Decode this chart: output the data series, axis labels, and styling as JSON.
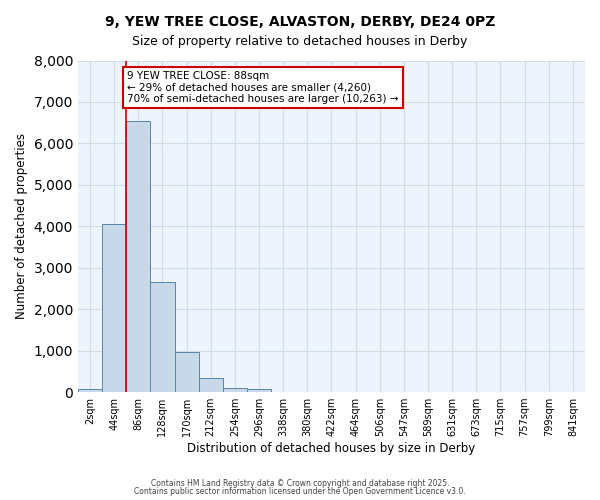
{
  "title_line1": "9, YEW TREE CLOSE, ALVASTON, DERBY, DE24 0PZ",
  "title_line2": "Size of property relative to detached houses in Derby",
  "xlabel": "Distribution of detached houses by size in Derby",
  "ylabel": "Number of detached properties",
  "bin_labels": [
    "2sqm",
    "44sqm",
    "86sqm",
    "128sqm",
    "170sqm",
    "212sqm",
    "254sqm",
    "296sqm",
    "338sqm",
    "380sqm",
    "422sqm",
    "464sqm",
    "506sqm",
    "547sqm",
    "589sqm",
    "631sqm",
    "673sqm",
    "715sqm",
    "757sqm",
    "799sqm",
    "841sqm"
  ],
  "bar_values": [
    75,
    4050,
    6550,
    2650,
    970,
    330,
    110,
    75,
    0,
    0,
    0,
    0,
    0,
    0,
    0,
    0,
    0,
    0,
    0,
    0,
    0
  ],
  "bar_color": "#c8d8e8",
  "bar_edge_color": "#5588aa",
  "property_line_color": "#cc0000",
  "annotation_text": "9 YEW TREE CLOSE: 88sqm\n← 29% of detached houses are smaller (4,260)\n70% of semi-detached houses are larger (10,263) →",
  "annotation_box_color": "#cc0000",
  "ylim": [
    0,
    8000
  ],
  "yticks": [
    0,
    1000,
    2000,
    3000,
    4000,
    5000,
    6000,
    7000,
    8000
  ],
  "grid_color": "#ccddee",
  "background_color": "#eef4fb",
  "footer_line1": "Contains HM Land Registry data © Crown copyright and database right 2025.",
  "footer_line2": "Contains public sector information licensed under the Open Government Licence v3.0."
}
